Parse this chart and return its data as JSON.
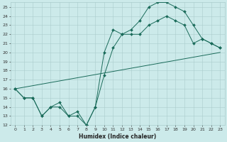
{
  "xlabel": "Humidex (Indice chaleur)",
  "bg_color": "#cceaea",
  "grid_color": "#aacccc",
  "line_color": "#1a6b5a",
  "xlim": [
    -0.5,
    23.5
  ],
  "ylim": [
    12,
    25.5
  ],
  "xticks": [
    0,
    1,
    2,
    3,
    4,
    5,
    6,
    7,
    8,
    9,
    10,
    11,
    12,
    13,
    14,
    15,
    16,
    17,
    18,
    19,
    20,
    21,
    22,
    23
  ],
  "yticks": [
    12,
    13,
    14,
    15,
    16,
    17,
    18,
    19,
    20,
    21,
    22,
    23,
    24,
    25
  ],
  "line1_x": [
    0,
    1,
    2,
    3,
    4,
    5,
    6,
    7,
    8,
    9,
    10,
    11,
    12,
    13,
    14,
    15,
    16,
    17,
    18,
    19,
    20,
    21,
    22,
    23
  ],
  "line1_y": [
    16,
    15,
    15,
    13,
    14,
    14,
    13,
    13,
    12,
    14,
    20,
    22.5,
    22,
    22.5,
    23.5,
    25,
    25.5,
    25.5,
    25,
    24.5,
    23,
    21.5,
    21,
    20.5
  ],
  "line2_x": [
    0,
    1,
    2,
    3,
    4,
    5,
    6,
    7,
    8,
    9,
    10,
    11,
    12,
    13,
    14,
    15,
    16,
    17,
    18,
    19,
    20,
    21,
    22,
    23
  ],
  "line2_y": [
    16,
    15,
    15,
    13,
    14,
    14.5,
    13,
    13.5,
    12,
    14,
    17.5,
    20.5,
    22,
    22,
    22,
    23,
    23.5,
    24,
    23.5,
    23,
    21,
    21.5,
    21,
    20.5
  ],
  "line3_x": [
    0,
    23
  ],
  "line3_y": [
    16,
    20
  ]
}
